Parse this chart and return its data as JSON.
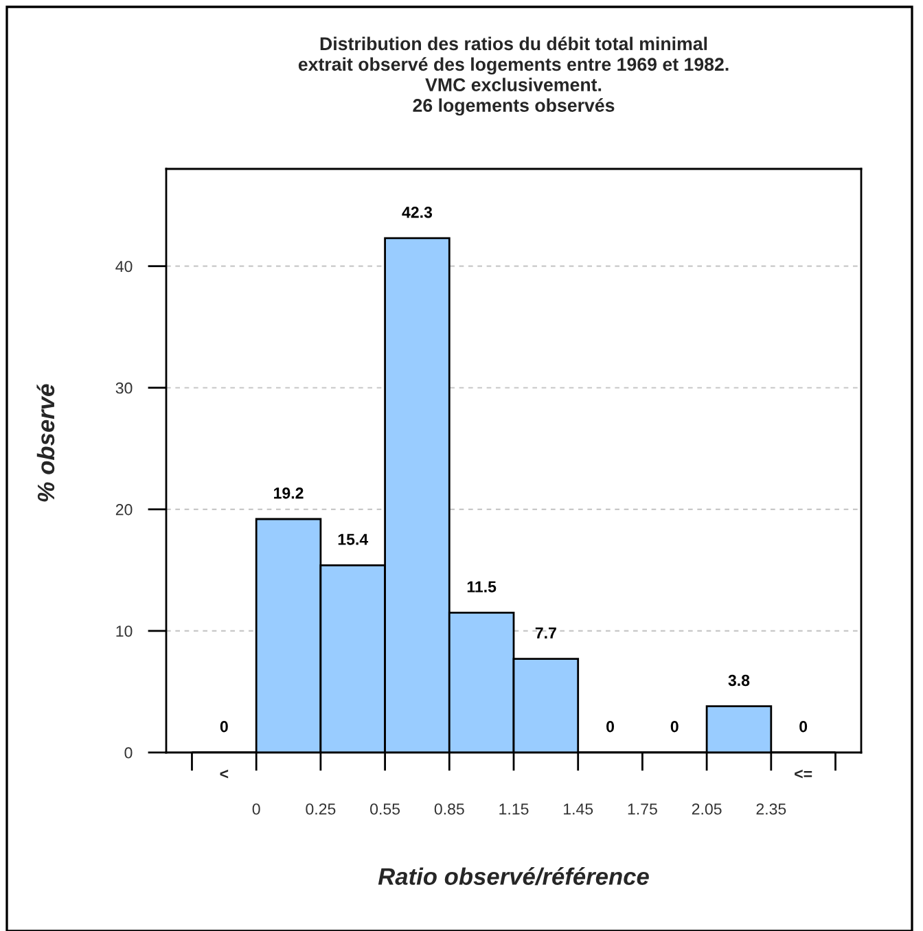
{
  "chart_data": {
    "type": "bar",
    "title": "Distribution des ratios du débit total minimal\nextrait observé des logements entre 1969 et 1982.\nVMC exclusivement.\n26 logements observés",
    "xlabel": "Ratio observé/référence",
    "ylabel": "% observé",
    "categories": [
      "<",
      null,
      null,
      null,
      null,
      null,
      null,
      null,
      null,
      "<="
    ],
    "values": [
      0,
      19.2,
      15.4,
      42.3,
      11.5,
      7.7,
      0,
      0,
      3.8,
      0
    ],
    "color": "#99ccff",
    "ylim": [
      0,
      48
    ],
    "yticks": [
      0,
      10,
      20,
      30,
      40
    ],
    "grid": "y",
    "data_labels": true,
    "annotations": [
      "0",
      "0.25",
      "0.55",
      "0.85",
      "1.15",
      "1.45",
      "1.75",
      "2.05",
      "2.35"
    ]
  }
}
